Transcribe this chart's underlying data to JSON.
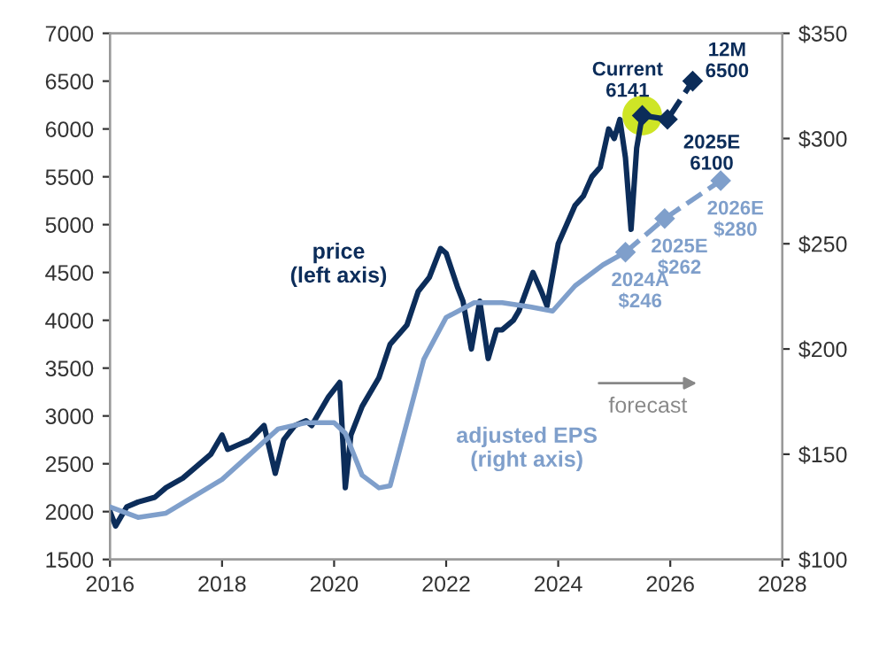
{
  "chart_data": {
    "type": "line",
    "xlim": [
      2016,
      2028
    ],
    "xticks": [
      2016,
      2018,
      2020,
      2022,
      2024,
      2026,
      2028
    ],
    "ylim": [
      1500,
      7000
    ],
    "yticks": [
      1500,
      2000,
      2500,
      3000,
      3500,
      4000,
      4500,
      5000,
      5500,
      6000,
      6500,
      7000
    ],
    "y2lim": [
      100,
      350
    ],
    "y2ticks": [
      {
        "value": 100,
        "label": "$100"
      },
      {
        "value": 150,
        "label": "$150"
      },
      {
        "value": 200,
        "label": "$200"
      },
      {
        "value": 250,
        "label": "$250"
      },
      {
        "value": 300,
        "label": "$300"
      },
      {
        "value": 350,
        "label": "$350"
      }
    ],
    "grid": false,
    "legend": false,
    "series": [
      {
        "name": "adjusted EPS\n(right axis)",
        "axis": "y2",
        "color": "#7f9fcb",
        "x": [
          2016.0,
          2016.5,
          2017.0,
          2017.5,
          2018.0,
          2018.5,
          2019.0,
          2019.5,
          2020.0,
          2020.2,
          2020.5,
          2020.8,
          2021.0,
          2021.3,
          2021.6,
          2022.0,
          2022.5,
          2023.0,
          2023.5,
          2023.9,
          2024.3,
          2024.8,
          2025.2
        ],
        "values": [
          125,
          120,
          122,
          130,
          138,
          150,
          162,
          165,
          165,
          160,
          140,
          134,
          135,
          165,
          195,
          215,
          222,
          222,
          220,
          218,
          230,
          240,
          246
        ]
      },
      {
        "type": "line",
        "axis": "y2",
        "color": "#7f9fcb",
        "line_style": "dashed",
        "marker": "diamond",
        "x": [
          2025.2,
          2025.9,
          2026.9
        ],
        "values": [
          246,
          262,
          280
        ],
        "value_labels": [
          "2024A\n$246",
          "2025E\n$262",
          "2026E\n$280"
        ]
      },
      {
        "name": "price\n(left axis)",
        "color": "#0c2d5a",
        "x": [
          2016.0,
          2016.1,
          2016.3,
          2016.5,
          2016.8,
          2017.0,
          2017.3,
          2017.5,
          2017.8,
          2018.0,
          2018.1,
          2018.3,
          2018.5,
          2018.75,
          2018.95,
          2019.1,
          2019.3,
          2019.5,
          2019.6,
          2019.9,
          2020.1,
          2020.2,
          2020.3,
          2020.5,
          2020.8,
          2021.0,
          2021.3,
          2021.5,
          2021.7,
          2021.9,
          2022.0,
          2022.2,
          2022.3,
          2022.45,
          2022.6,
          2022.75,
          2022.9,
          2023.0,
          2023.2,
          2023.3,
          2023.55,
          2023.7,
          2023.8,
          2024.0,
          2024.3,
          2024.45,
          2024.6,
          2024.75,
          2024.9,
          2025.0,
          2025.1,
          2025.2,
          2025.3,
          2025.4,
          2025.5
        ],
        "values": [
          2000,
          1850,
          2050,
          2100,
          2150,
          2250,
          2350,
          2450,
          2600,
          2800,
          2650,
          2700,
          2750,
          2900,
          2400,
          2750,
          2900,
          2950,
          2900,
          3200,
          3350,
          2250,
          2800,
          3100,
          3400,
          3750,
          3950,
          4300,
          4450,
          4750,
          4700,
          4350,
          4200,
          3700,
          4200,
          3600,
          3900,
          3900,
          4000,
          4100,
          4500,
          4300,
          4150,
          4800,
          5200,
          5300,
          5500,
          5600,
          6000,
          5900,
          6100,
          5700,
          4950,
          5800,
          6141
        ]
      },
      {
        "type": "line",
        "color": "#0c2d5a",
        "line_style": "dashed",
        "marker": "diamond",
        "x": [
          2025.5,
          2025.95,
          2026.4
        ],
        "values": [
          6141,
          6100,
          6500
        ],
        "value_labels": [
          "Current\n6141",
          "2025E\n6100",
          "12M\n6500"
        ]
      },
      {
        "type": "scatter",
        "color": "#c5e000",
        "x": [
          2025.5
        ],
        "values": [
          6141
        ]
      }
    ],
    "annotations": [
      "forecast"
    ]
  }
}
